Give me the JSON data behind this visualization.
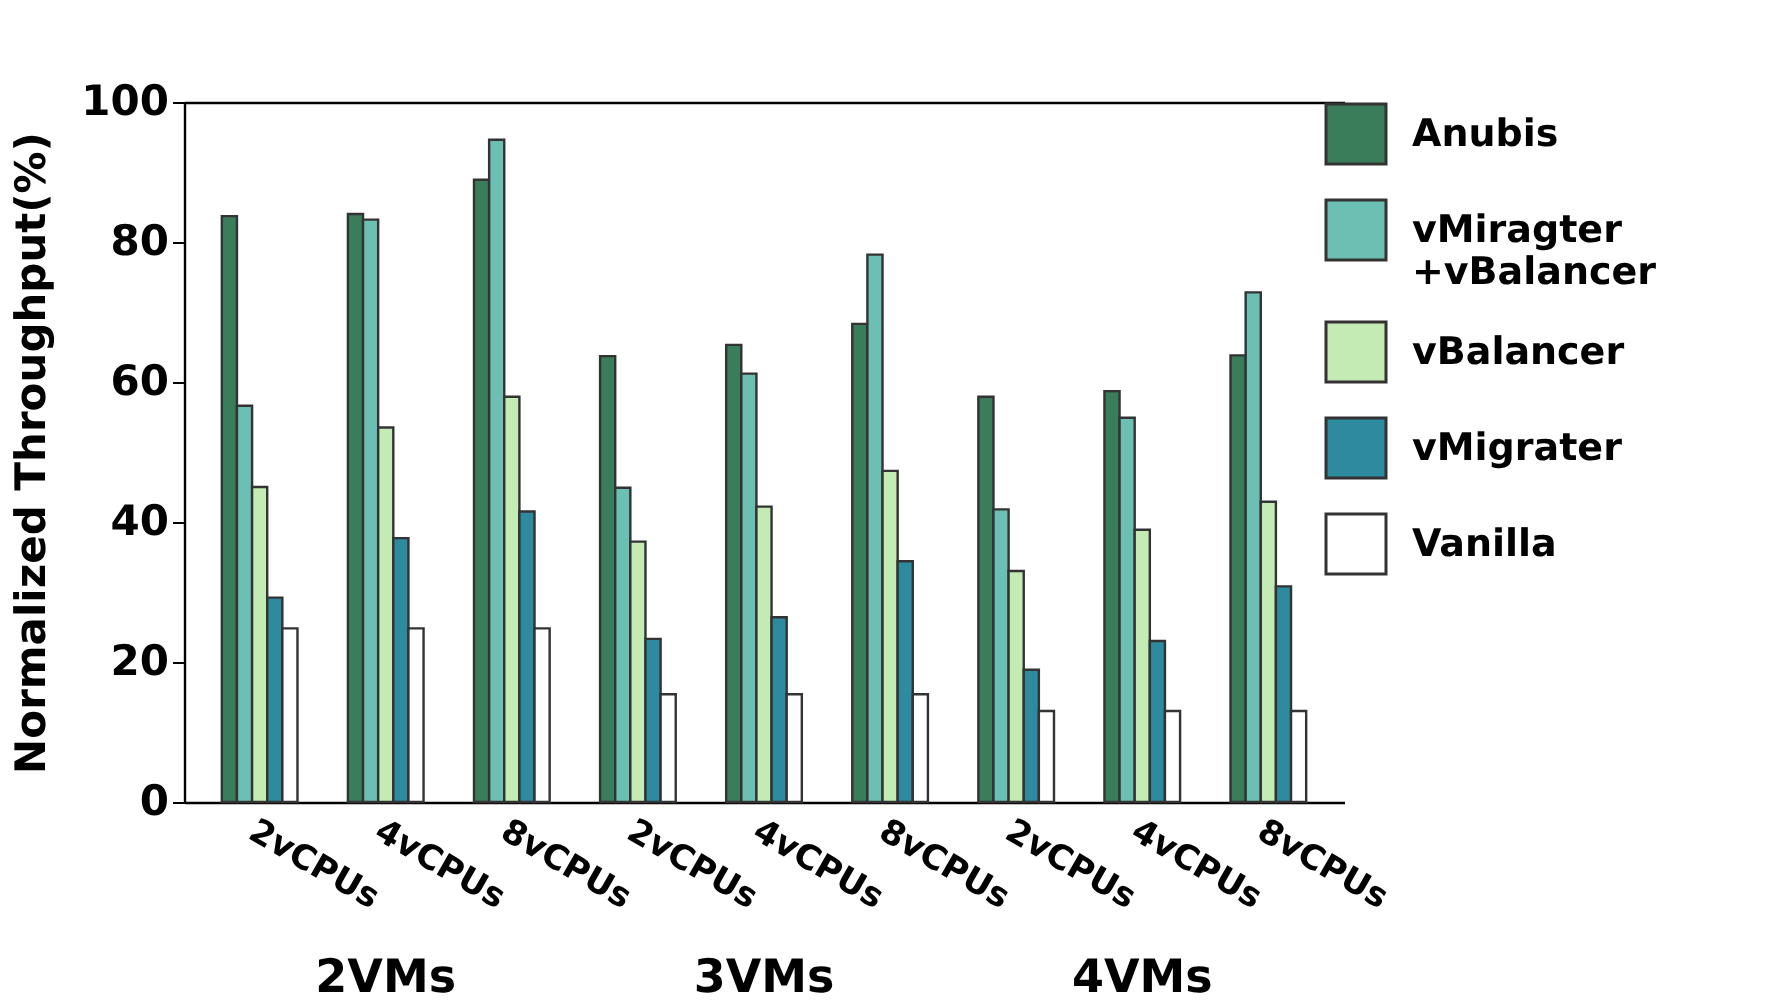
{
  "chart_data": {
    "type": "bar",
    "ylabel": "Normalized Throughput(%)",
    "categories": [
      "2vCPUs",
      "4vCPUs",
      "8vCPUs",
      "2vCPUs",
      "4vCPUs",
      "8vCPUs",
      "2vCPUs",
      "4vCPUs",
      "8vCPUs"
    ],
    "annotations": [
      "2VMs",
      "3VMs",
      "4VMs"
    ],
    "series": [
      {
        "name": "Anubis",
        "color": "#3a7d5a",
        "values": [
          83.7,
          84.0,
          88.9,
          63.7,
          65.3,
          68.3,
          57.9,
          58.7,
          63.8
        ]
      },
      {
        "name": "vMiragter\n+vBalancer",
        "color": "#6cc0b3",
        "values": [
          56.6,
          83.2,
          94.6,
          44.9,
          61.2,
          78.2,
          41.8,
          54.9,
          72.8
        ]
      },
      {
        "name": "vBalancer",
        "color": "#c5ebb5",
        "values": [
          45.0,
          53.5,
          57.9,
          37.2,
          42.2,
          47.3,
          33.0,
          38.9,
          42.9
        ]
      },
      {
        "name": "vMigrater",
        "color": "#2e8a9e",
        "values": [
          29.2,
          37.7,
          41.5,
          23.3,
          26.4,
          34.4,
          18.9,
          23.0,
          30.8
        ]
      },
      {
        "name": "Vanilla",
        "color": "#ffffff",
        "values": [
          24.8,
          24.8,
          24.8,
          15.4,
          15.4,
          15.4,
          13.0,
          13.0,
          13.0
        ]
      }
    ],
    "ylim": [
      0,
      100
    ],
    "yticks": [
      0,
      20,
      40,
      60,
      80,
      100
    ],
    "grid": false,
    "legend": "top right"
  }
}
